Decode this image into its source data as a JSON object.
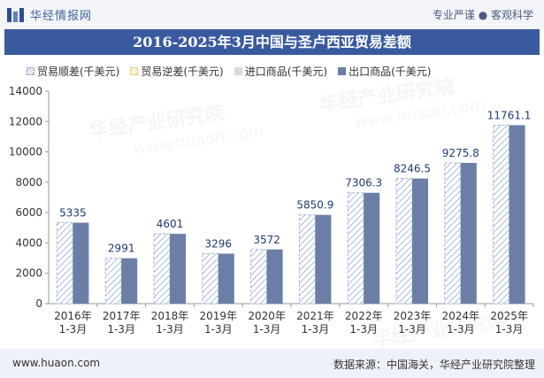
{
  "header": {
    "site_name": "华经情报网",
    "slogan": "专业严谨 ● 客观科学"
  },
  "title": "2016-2025年3月中国与圣卢西亚贸易差额",
  "legend": {
    "items": [
      {
        "label": "贸易顺差(千美元)",
        "color": "#c9d7ec",
        "pattern": "hatch-blue"
      },
      {
        "label": "贸易逆差(千美元)",
        "color": "#f3e2a8",
        "pattern": "hatch-yellow"
      },
      {
        "label": "进口商品(千美元)",
        "color": "#d9d9d9",
        "pattern": "solid-gray"
      },
      {
        "label": "出口商品(千美元)",
        "color": "#6b7fa6",
        "pattern": "solid-blue"
      }
    ]
  },
  "chart_data": {
    "type": "bar",
    "categories": [
      "2016年\n1-3月",
      "2017年\n1-3月",
      "2018年\n1-3月",
      "2019年\n1-3月",
      "2020年\n1-3月",
      "2021年\n1-3月",
      "2022年\n1-3月",
      "2023年\n1-3月",
      "2024年\n1-3月",
      "2025年\n1-3月"
    ],
    "series": [
      {
        "name": "贸易顺差(千美元)",
        "values": [
          5335,
          2991,
          4601,
          3296,
          3572,
          5850.9,
          7306.3,
          8246.5,
          9275.8,
          11761.1
        ]
      },
      {
        "name": "出口商品(千美元)",
        "values": [
          5335,
          2991,
          4601,
          3296,
          3572,
          5850.9,
          7306.3,
          8246.5,
          9275.8,
          11761.1
        ]
      }
    ],
    "data_labels": [
      "5335",
      "2991",
      "4601",
      "3296",
      "3572",
      "5850.9",
      "7306.3",
      "8246.5",
      "9275.8",
      "11761.1"
    ],
    "yticks": [
      "0",
      "2000",
      "4000",
      "6000",
      "8000",
      "10000",
      "12000",
      "14000"
    ],
    "ylim": [
      0,
      14000
    ],
    "colors": {
      "surplus_hatch": "#9fb3d6",
      "export": "#6b7fa6",
      "axis": "#666666"
    }
  },
  "footer": {
    "url": "www.huaon.com",
    "source": "数据来源：中国海关，华经产业研究院整理"
  },
  "watermarks": {
    "text": "华经产业研究院",
    "url": "www.huaon.com"
  }
}
